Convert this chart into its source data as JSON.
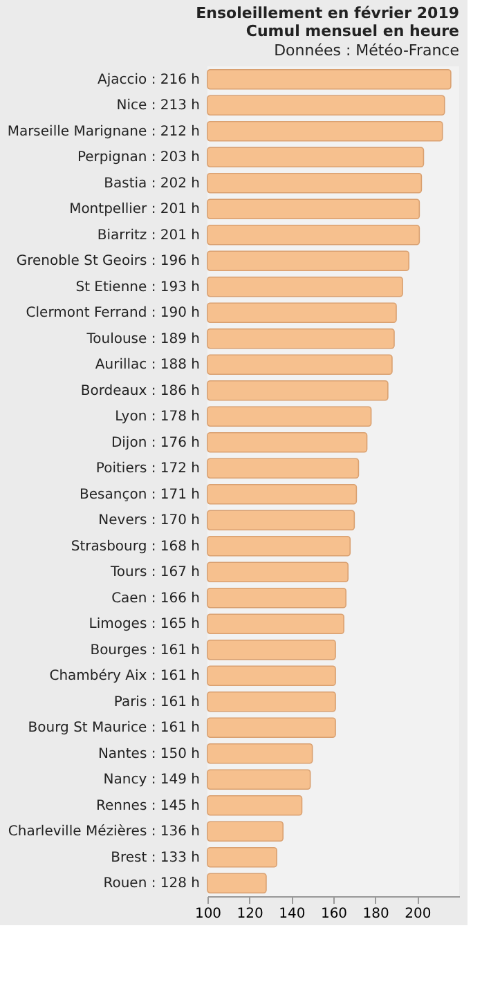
{
  "chart_data": {
    "type": "bar",
    "orientation": "horizontal",
    "title": "Ensoleillement en février 2019",
    "subtitle": "Cumul mensuel en heure",
    "annotations": [
      "Données : Météo-France"
    ],
    "categories": [
      "Ajaccio : 216 h",
      "Nice : 213 h",
      "Marseille Marignane : 212 h",
      "Perpignan : 203 h",
      "Bastia : 202 h",
      "Montpellier : 201 h",
      "Biarritz : 201 h",
      "Grenoble St Geoirs : 196 h",
      "St Etienne : 193 h",
      "Clermont Ferrand : 190 h",
      "Toulouse : 189 h",
      "Aurillac : 188 h",
      "Bordeaux : 186 h",
      "Lyon : 178 h",
      "Dijon : 176 h",
      "Poitiers : 172 h",
      "Besançon : 171 h",
      "Nevers : 170 h",
      "Strasbourg : 168 h",
      "Tours : 167 h",
      "Caen : 166 h",
      "Limoges : 165 h",
      "Bourges : 161 h",
      "Chambéry Aix : 161 h",
      "Paris : 161 h",
      "Bourg St Maurice : 161 h",
      "Nantes : 150 h",
      "Nancy : 149 h",
      "Rennes : 145 h",
      "Charleville Mézières : 136 h",
      "Brest : 133 h",
      "Rouen : 128 h"
    ],
    "values": [
      216,
      213,
      212,
      203,
      202,
      201,
      201,
      196,
      193,
      190,
      189,
      188,
      186,
      178,
      176,
      172,
      171,
      170,
      168,
      167,
      166,
      165,
      161,
      161,
      161,
      161,
      150,
      149,
      145,
      136,
      133,
      128
    ],
    "color": "#f6c08e",
    "xlim": [
      100,
      220
    ],
    "xticks": [
      100,
      120,
      140,
      160,
      180,
      200
    ],
    "grid": false
  }
}
